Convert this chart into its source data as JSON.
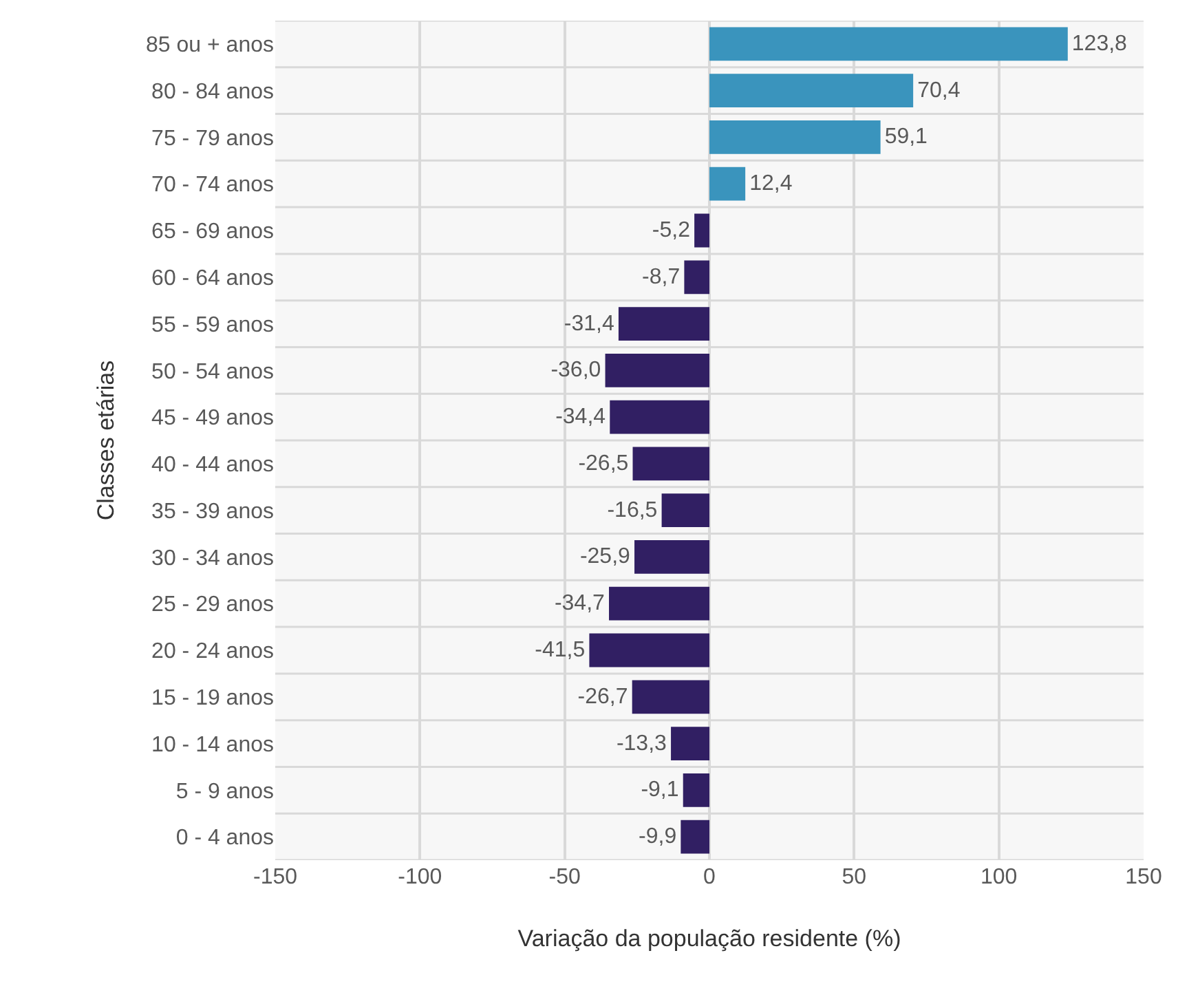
{
  "chart_data": {
    "type": "bar",
    "orientation": "horizontal",
    "xlabel": "Variação da população residente (%)",
    "ylabel": "Classes etárias",
    "categories": [
      "85 ou + anos",
      "80 - 84 anos",
      "75 - 79 anos",
      "70 - 74 anos",
      "65 - 69 anos",
      "60 - 64 anos",
      "55 - 59 anos",
      "50 - 54 anos",
      "45 - 49 anos",
      "40 - 44 anos",
      "35 - 39 anos",
      "30 - 34 anos",
      "25 - 29 anos",
      "20 - 24 anos",
      "15 - 19 anos",
      "10 - 14 anos",
      "5 - 9 anos",
      "0 - 4 anos"
    ],
    "values": [
      123.8,
      70.4,
      59.1,
      12.4,
      -5.2,
      -8.7,
      -31.4,
      -36.0,
      -34.4,
      -26.5,
      -16.5,
      -25.9,
      -34.7,
      -41.5,
      -26.7,
      -13.3,
      -9.1,
      -9.9
    ],
    "value_labels": [
      "123,8",
      "70,4",
      "59,1",
      "12,4",
      "-5,2",
      "-8,7",
      "-31,4",
      "-36,0",
      "-34,4",
      "-26,5",
      "-16,5",
      "-25,9",
      "-34,7",
      "-41,5",
      "-26,7",
      "-13,3",
      "-9,1",
      "-9,9"
    ],
    "colors": [
      "#3a94bd",
      "#3a94bd",
      "#3a94bd",
      "#3a94bd",
      "#311f63",
      "#311f63",
      "#311f63",
      "#311f63",
      "#311f63",
      "#311f63",
      "#311f63",
      "#311f63",
      "#311f63",
      "#311f63",
      "#311f63",
      "#311f63",
      "#311f63",
      "#311f63"
    ],
    "xlim": [
      -150,
      150
    ],
    "xticks": [
      -150,
      -100,
      -50,
      0,
      50,
      100,
      150
    ],
    "grid": true,
    "legend": false
  }
}
